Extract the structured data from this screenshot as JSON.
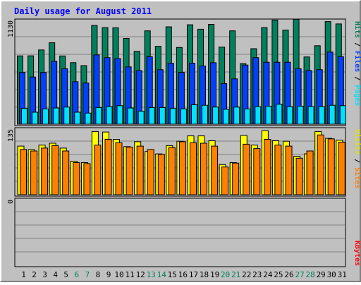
{
  "chart_data": {
    "type": "bar",
    "title": "Daily usage for August 2011",
    "x": [
      1,
      2,
      3,
      4,
      5,
      6,
      7,
      8,
      9,
      10,
      11,
      12,
      13,
      14,
      15,
      16,
      17,
      18,
      19,
      20,
      21,
      22,
      23,
      24,
      25,
      26,
      27,
      28,
      29,
      30,
      31
    ],
    "weekend_days": [
      6,
      7,
      13,
      14,
      20,
      21,
      27,
      28
    ],
    "panels": [
      {
        "id": "hits",
        "ymax_label": "1130",
        "ymax": 1130,
        "legend": [
          "Pages",
          "Files",
          "Hits"
        ],
        "series": [
          {
            "name": "Hits",
            "color": "#00805c",
            "values": [
              739,
              740,
              803,
              881,
              738,
              666,
              634,
              1069,
              1045,
              1044,
              928,
              788,
              1010,
              843,
              1054,
              830,
              1076,
              1028,
              1080,
              834,
              1010,
              655,
              817,
              1045,
              1127,
              1018,
              1135,
              728,
              849,
              1110,
              1085
            ]
          },
          {
            "name": "Files",
            "color": "#0040ff",
            "values": [
              560,
              510,
              560,
              680,
              600,
              460,
              445,
              750,
              720,
              710,
              620,
              580,
              730,
              590,
              660,
              560,
              660,
              630,
              665,
              440,
              490,
              640,
              720,
              670,
              670,
              670,
              600,
              580,
              590,
              780,
              730
            ]
          },
          {
            "name": "Pages",
            "color": "#00e0ff",
            "values": [
              170,
              130,
              165,
              175,
              185,
              130,
              120,
              180,
              190,
              200,
              175,
              140,
              180,
              180,
              170,
              165,
              210,
              205,
              185,
              160,
              185,
              165,
              190,
              195,
              215,
              190,
              195,
              190,
              190,
              205,
              200
            ]
          }
        ]
      },
      {
        "id": "visits",
        "ymax_label": "135",
        "ymax": 135,
        "legend": [
          "Sites",
          "Visits"
        ],
        "series": [
          {
            "name": "Visits",
            "color": "#ffff00",
            "values": [
              100,
              93,
              102,
              106,
              96,
              69,
              66,
              130,
              129,
              114,
              99,
              109,
              89,
              84,
              101,
              110,
              121,
              121,
              111,
              62,
              66,
              122,
              102,
              132,
              111,
              110,
              79,
              84,
              130,
              116,
              112
            ]
          },
          {
            "name": "Sites",
            "color": "#ff8000",
            "values": [
              93,
              90,
              96,
              101,
              90,
              66,
              64,
              102,
              114,
              107,
              98,
              100,
              93,
              83,
              97,
              109,
              107,
              106,
              100,
              57,
              65,
              104,
              95,
              114,
              102,
              100,
              75,
              90,
              123,
              115,
              108
            ]
          }
        ]
      },
      {
        "id": "kbytes",
        "ymax_label": "0",
        "ymax": 0,
        "legend": [
          "KBytes"
        ],
        "series": [
          {
            "name": "KBytes",
            "color": "#ff0000",
            "values": []
          }
        ]
      }
    ]
  },
  "colors": {
    "background": "#c0c0c0",
    "title": "#0000ff",
    "weekday_label": "#000000",
    "weekend_label": "#00805c",
    "legend_slash": "#000000"
  }
}
